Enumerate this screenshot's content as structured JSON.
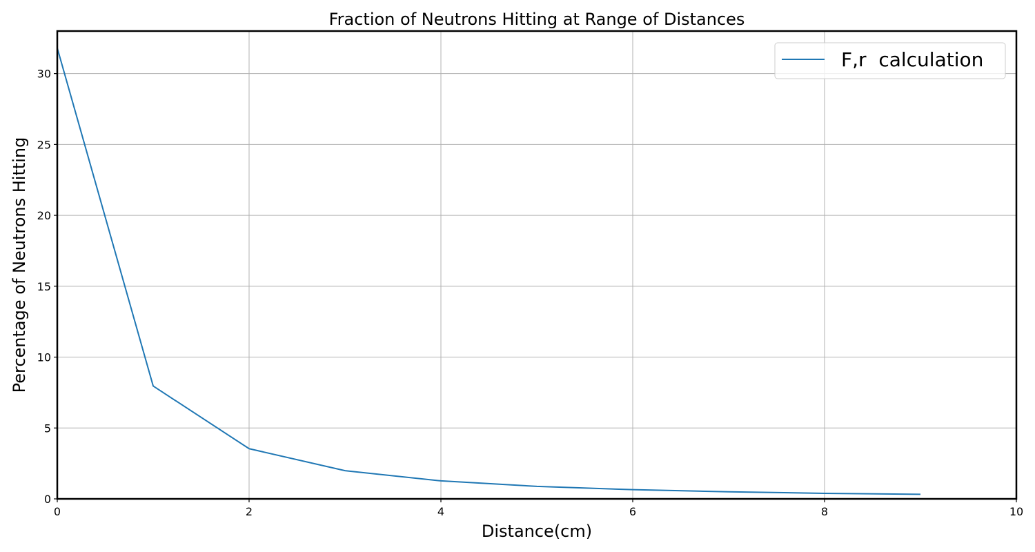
{
  "chart_data": {
    "type": "line",
    "title": "Fraction of Neutrons Hitting at Range of Distances",
    "xlabel": "Distance(cm)",
    "ylabel": "Percentage of Neutrons Hitting",
    "xlim": [
      0,
      10
    ],
    "ylim": [
      0,
      33
    ],
    "xticks": [
      0,
      2,
      4,
      6,
      8,
      10
    ],
    "yticks": [
      0,
      5,
      10,
      15,
      20,
      25,
      30
    ],
    "grid": true,
    "legend_position": "top-right",
    "series": [
      {
        "name": "F,r  calculation",
        "color": "#1f77b4",
        "x": [
          0,
          1,
          2,
          3,
          4,
          5,
          6,
          7,
          8,
          9
        ],
        "y": [
          31.8,
          7.96,
          3.54,
          1.99,
          1.27,
          0.88,
          0.65,
          0.5,
          0.39,
          0.32
        ]
      }
    ]
  }
}
